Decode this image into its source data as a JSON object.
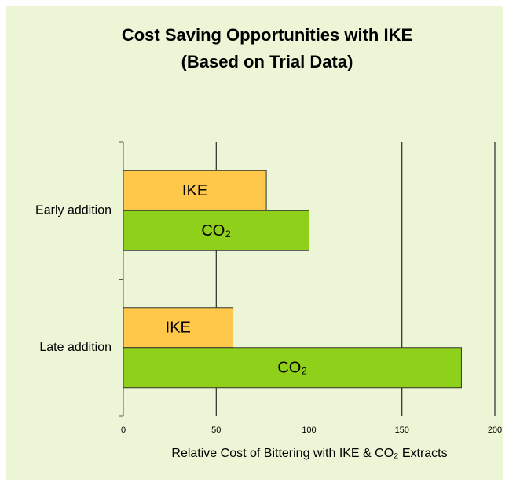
{
  "chart_data": {
    "type": "bar",
    "orientation": "horizontal",
    "title": [
      "Cost Saving Opportunities with IKE",
      "(Based on Trial Data)"
    ],
    "xlabel": "Relative Cost of Bittering with IKE & CO₂ Extracts",
    "categories": [
      "Early addition",
      "Late addition"
    ],
    "series": [
      {
        "name": "IKE",
        "color": "#ffc84b",
        "values": [
          77,
          59
        ]
      },
      {
        "name": "CO₂",
        "color": "#8fd11a",
        "values": [
          100,
          182
        ]
      }
    ],
    "xlim": [
      0,
      200
    ],
    "xticks": [
      0,
      50,
      100,
      150,
      200
    ],
    "grid": true,
    "background": "#ecf5d6"
  }
}
